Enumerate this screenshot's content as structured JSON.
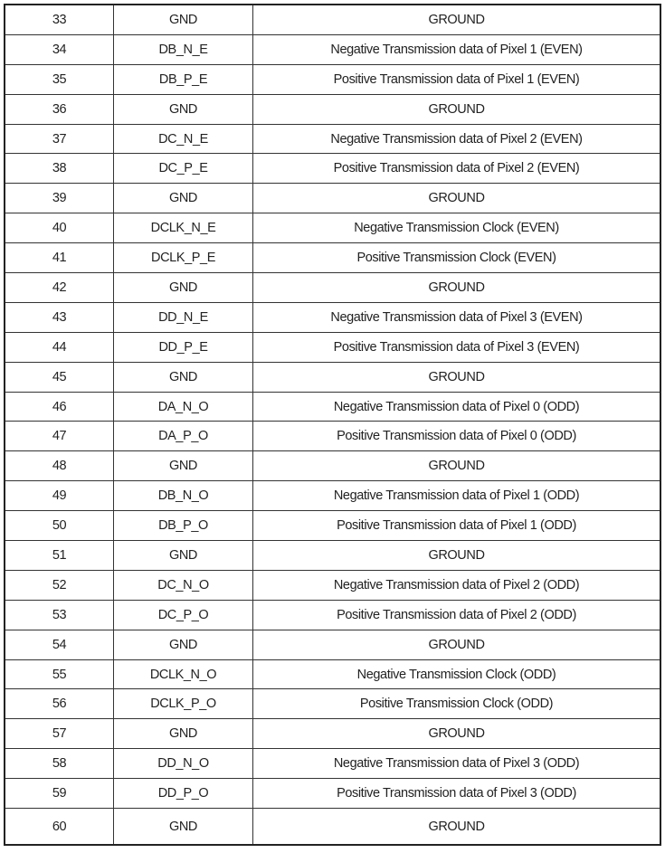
{
  "table": {
    "rows": [
      [
        "33",
        "GND",
        "GROUND"
      ],
      [
        "34",
        "DB_N_E",
        "Negative Transmission data of Pixel 1 (EVEN)"
      ],
      [
        "35",
        "DB_P_E",
        "Positive Transmission data of Pixel 1 (EVEN)"
      ],
      [
        "36",
        "GND",
        "GROUND"
      ],
      [
        "37",
        "DC_N_E",
        "Negative Transmission data of Pixel 2 (EVEN)"
      ],
      [
        "38",
        "DC_P_E",
        "Positive Transmission data of Pixel 2 (EVEN)"
      ],
      [
        "39",
        "GND",
        "GROUND"
      ],
      [
        "40",
        "DCLK_N_E",
        "Negative Transmission Clock (EVEN)"
      ],
      [
        "41",
        "DCLK_P_E",
        "Positive Transmission Clock (EVEN)"
      ],
      [
        "42",
        "GND",
        "GROUND"
      ],
      [
        "43",
        "DD_N_E",
        "Negative Transmission data of Pixel 3 (EVEN)"
      ],
      [
        "44",
        "DD_P_E",
        "Positive Transmission data of Pixel 3 (EVEN)"
      ],
      [
        "45",
        "GND",
        "GROUND"
      ],
      [
        "46",
        "DA_N_O",
        "Negative Transmission data of Pixel 0 (ODD)"
      ],
      [
        "47",
        "DA_P_O",
        "Positive Transmission data of Pixel 0 (ODD)"
      ],
      [
        "48",
        "GND",
        "GROUND"
      ],
      [
        "49",
        "DB_N_O",
        "Negative Transmission data of Pixel 1 (ODD)"
      ],
      [
        "50",
        "DB_P_O",
        "Positive Transmission data of Pixel 1 (ODD)"
      ],
      [
        "51",
        "GND",
        "GROUND"
      ],
      [
        "52",
        "DC_N_O",
        "Negative Transmission data of Pixel 2 (ODD)"
      ],
      [
        "53",
        "DC_P_O",
        "Positive Transmission data of Pixel 2 (ODD)"
      ],
      [
        "54",
        "GND",
        "GROUND"
      ],
      [
        "55",
        "DCLK_N_O",
        "Negative Transmission Clock (ODD)"
      ],
      [
        "56",
        "DCLK_P_O",
        "Positive Transmission Clock (ODD)"
      ],
      [
        "57",
        "GND",
        "GROUND"
      ],
      [
        "58",
        "DD_N_O",
        "Negative Transmission data of Pixel 3 (ODD)"
      ],
      [
        "59",
        "DD_P_O",
        "Positive Transmission data of Pixel 3 (ODD)"
      ],
      [
        "60",
        "GND",
        "GROUND"
      ]
    ]
  }
}
